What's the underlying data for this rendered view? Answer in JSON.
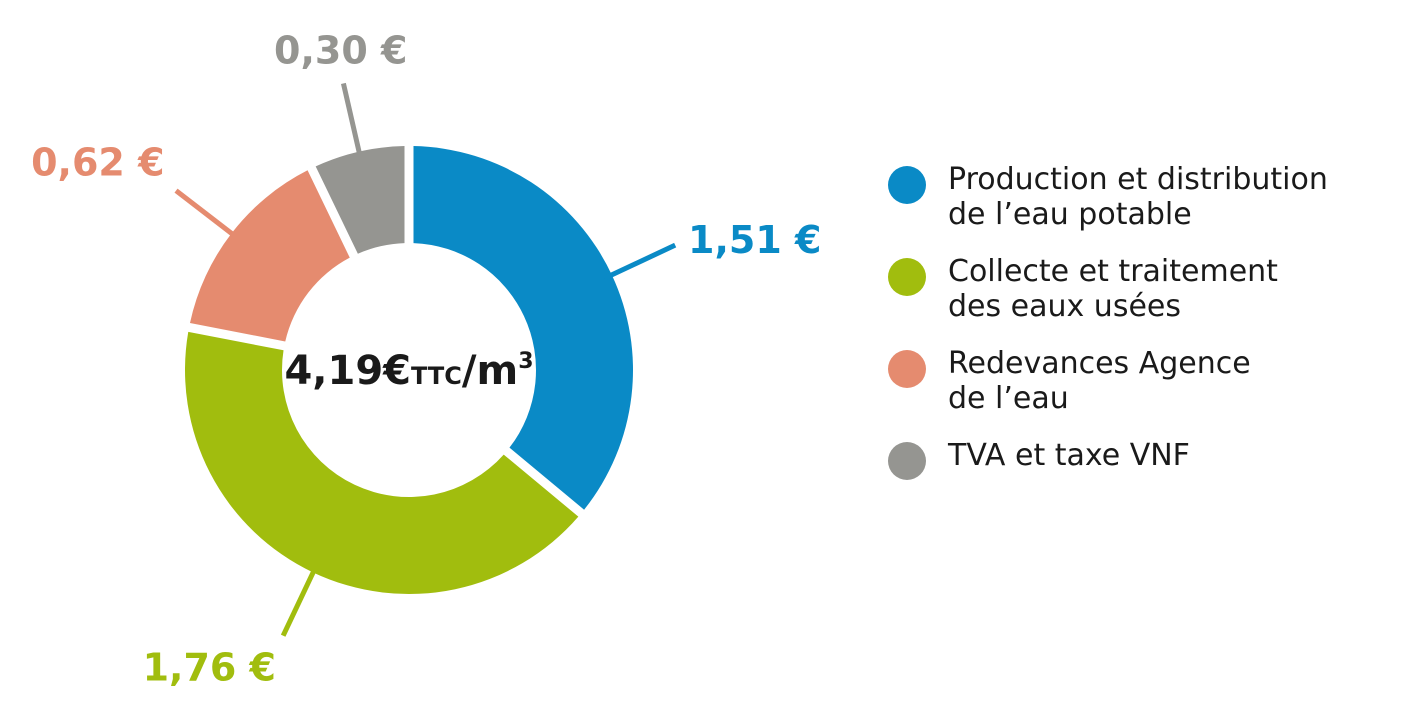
{
  "chart_data": {
    "type": "pie",
    "donut": true,
    "center_label": {
      "value": "4,19€",
      "unit_small": "TTC",
      "unit": "/m",
      "superscript": "3"
    },
    "slices": [
      {
        "name": "Production et distribution\nde l’eau potable",
        "value": 1.51,
        "label": "1,51 €",
        "color": "#0a8ac6"
      },
      {
        "name": "Collecte et traitement\ndes eaux usées",
        "value": 1.76,
        "label": "1,76 €",
        "color": "#a1bd0e"
      },
      {
        "name": "Redevances Agence\nde l’eau",
        "value": 0.62,
        "label": "0,62 €",
        "color": "#e58b6f"
      },
      {
        "name": "TVA et taxe VNF",
        "value": 0.3,
        "label": "0,30 €",
        "color": "#959591"
      }
    ],
    "legend_position": "right"
  }
}
